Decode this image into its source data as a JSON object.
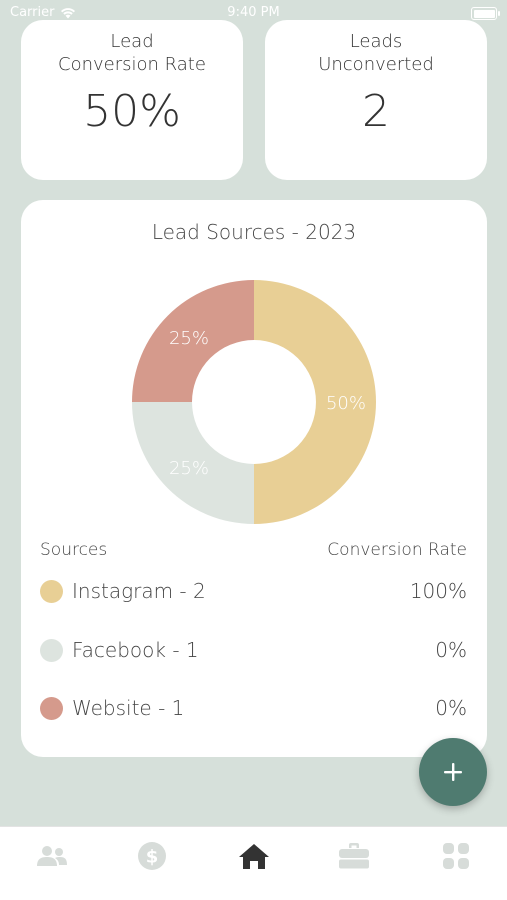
{
  "status_bar": {
    "carrier": "Carrier",
    "time": "9:40 PM",
    "icons": [
      "wifi-icon",
      "battery-icon"
    ]
  },
  "stats": {
    "conversion": {
      "title": "Lead\nConversion Rate",
      "value": "50%"
    },
    "unconverted": {
      "title": "Leads\nUnconverted",
      "value": "2"
    }
  },
  "sources_card": {
    "title": "Lead Sources - 2023",
    "legend_header": {
      "left": "Sources",
      "right": "Conversion Rate"
    },
    "rows": [
      {
        "label": "Instagram - 2",
        "rate": "100%",
        "color": "#e8cf95"
      },
      {
        "label": "Facebook - 1",
        "rate": "0%",
        "color": "#dde4df"
      },
      {
        "label": "Website - 1",
        "rate": "0%",
        "color": "#d59a8c"
      }
    ]
  },
  "chart_data": {
    "type": "pie",
    "title": "Lead Sources - 2023",
    "categories": [
      "Instagram",
      "Facebook",
      "Website"
    ],
    "values": [
      50,
      25,
      25
    ],
    "labels": [
      "50%",
      "25%",
      "25%"
    ],
    "colors": [
      "#e8cf95",
      "#dde4df",
      "#d59a8c"
    ],
    "donut": true
  },
  "fab": {
    "icon": "plus-icon"
  },
  "tab_bar": {
    "items": [
      {
        "name": "tab-clients",
        "icon": "people-icon",
        "active": false
      },
      {
        "name": "tab-finance",
        "icon": "dollar-icon",
        "active": false
      },
      {
        "name": "tab-home",
        "icon": "home-icon",
        "active": true
      },
      {
        "name": "tab-jobs",
        "icon": "briefcase-icon",
        "active": false
      },
      {
        "name": "tab-more",
        "icon": "grid-icon",
        "active": false
      }
    ],
    "active_color": "#333333",
    "inactive_color": "#d7dcd9"
  }
}
